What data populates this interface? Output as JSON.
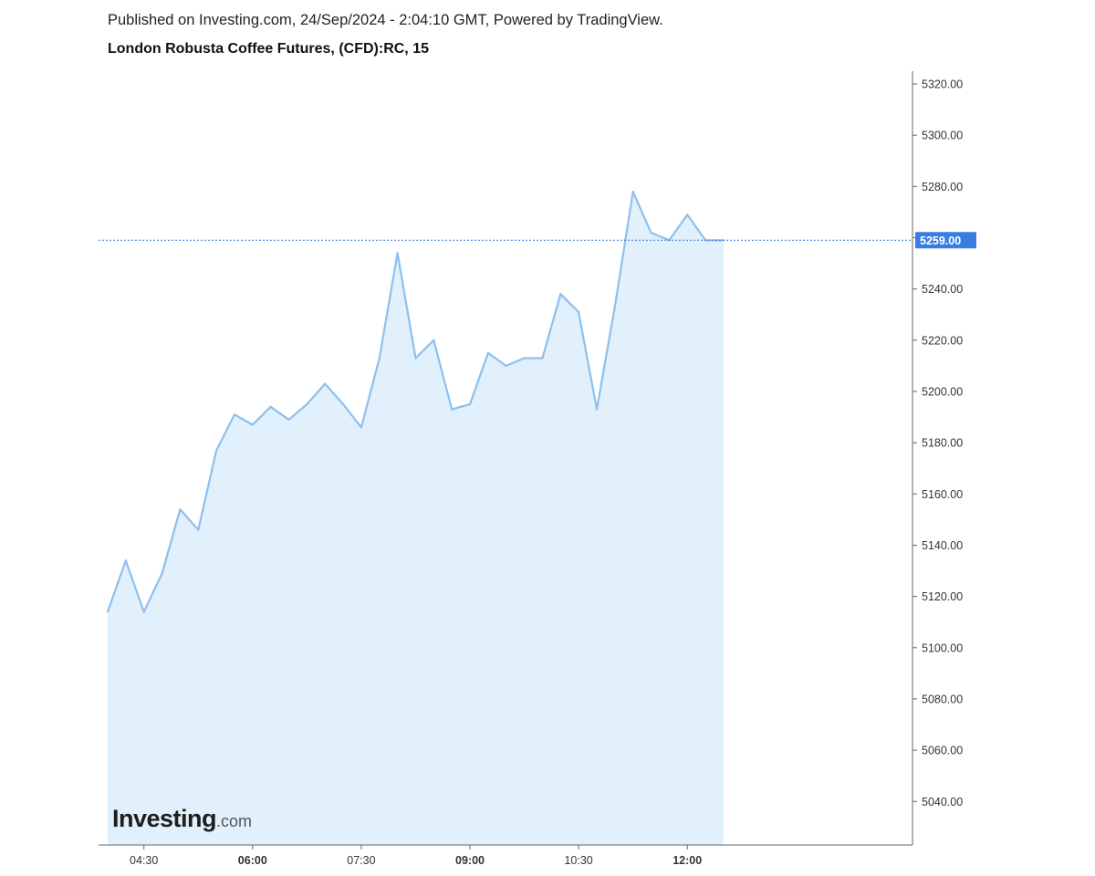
{
  "header": {
    "publish_text": "Published on Investing.com, 24/Sep/2024 - 2:04:10 GMT, Powered by TradingView.",
    "title": "London Robusta Coffee Futures, (CFD):RC, 15"
  },
  "logo": {
    "main": "Investing",
    "suffix": ".com"
  },
  "colors": {
    "line": "#8dc0ef",
    "fill": "#e1f0fa",
    "last_price_bg": "#3a7de0",
    "last_price_line": "#3f6fd8",
    "axis": "#666666"
  },
  "chart_data": {
    "type": "area",
    "title": "London Robusta Coffee Futures, (CFD):RC, 15",
    "xlabel": "",
    "ylabel": "",
    "ylim": [
      5023,
      5325
    ],
    "grid": false,
    "y_ticks": [
      "5320.00",
      "5300.00",
      "5280.00",
      "5260.00",
      "5240.00",
      "5220.00",
      "5200.00",
      "5180.00",
      "5160.00",
      "5140.00",
      "5120.00",
      "5100.00",
      "5080.00",
      "5060.00",
      "5040.00"
    ],
    "x_ticks": [
      {
        "label": "04:30",
        "index": 2,
        "bold": false
      },
      {
        "label": "06:00",
        "index": 8,
        "bold": true
      },
      {
        "label": "07:30",
        "index": 14,
        "bold": false
      },
      {
        "label": "09:00",
        "index": 20,
        "bold": true
      },
      {
        "label": "10:30",
        "index": 26,
        "bold": false
      },
      {
        "label": "12:00",
        "index": 32,
        "bold": true
      }
    ],
    "last_price": 5259,
    "last_price_label": "5259.00",
    "series": [
      {
        "values": [
          5114,
          5134,
          5114,
          5129,
          5154,
          5146,
          5177,
          5191,
          5187,
          5194,
          5189,
          5195,
          5203,
          5195,
          5186,
          5213,
          5254,
          5213,
          5220,
          5193,
          5195,
          5215,
          5210,
          5213,
          5213,
          5238,
          5231,
          5193,
          5233,
          5278,
          5262,
          5259,
          5269,
          5259,
          5259
        ]
      }
    ]
  }
}
